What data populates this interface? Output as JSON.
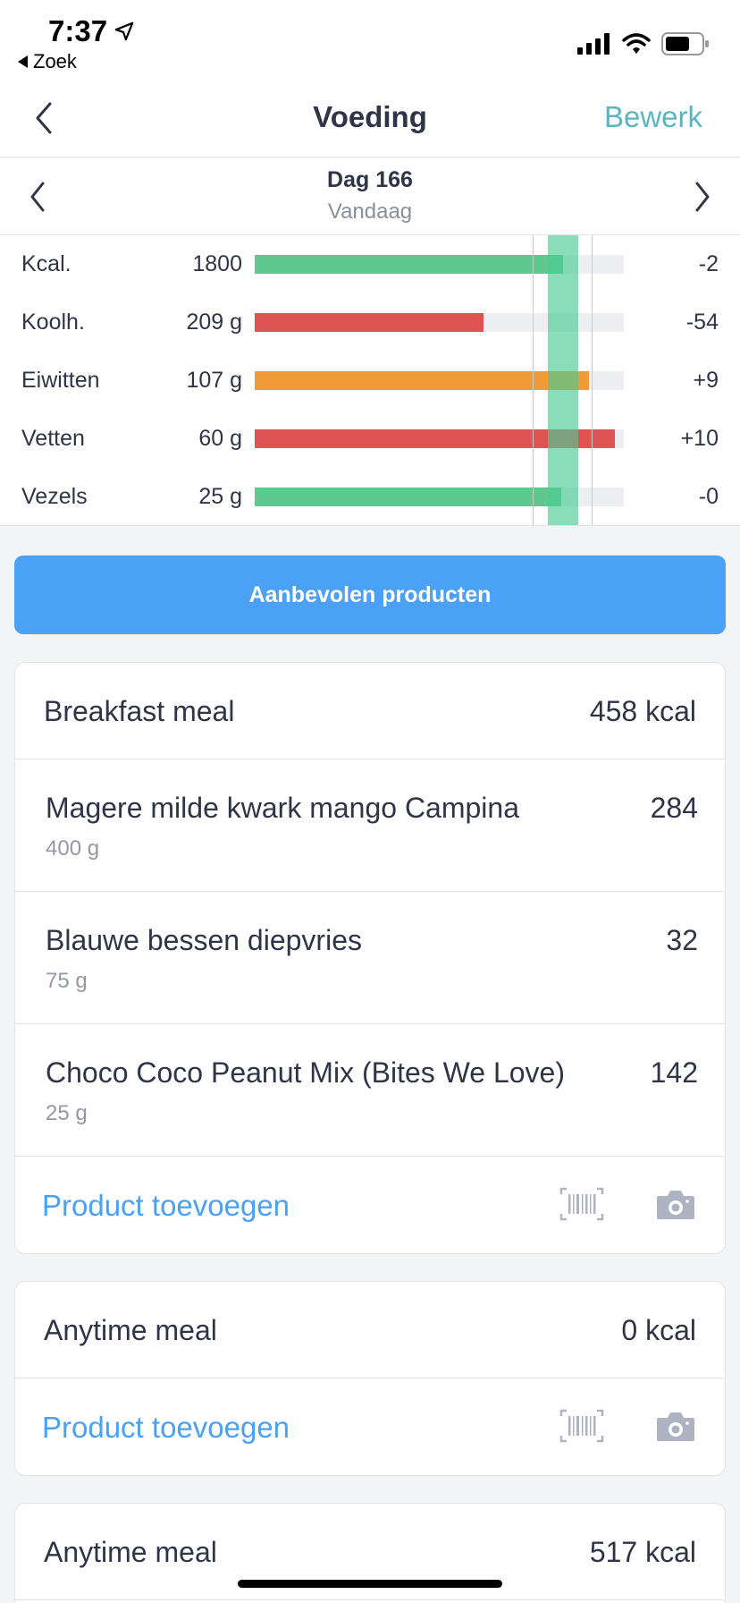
{
  "status_bar": {
    "time": "7:37",
    "back_app_label": "Zoek"
  },
  "nav": {
    "title": "Voeding",
    "edit_label": "Bewerk"
  },
  "day": {
    "title": "Dag 166",
    "subtitle": "Vandaag"
  },
  "macros": [
    {
      "name": "Kcal.",
      "amount": "1800",
      "diff": "-2",
      "fill_fraction": 0.835,
      "color": "#5ec88f"
    },
    {
      "name": "Koolh.",
      "amount": "209 g",
      "diff": "-54",
      "fill_fraction": 0.62,
      "color": "#e05353"
    },
    {
      "name": "Eiwitten",
      "amount": "107 g",
      "diff": "+9",
      "fill_fraction": 0.905,
      "color": "#f09a3a"
    },
    {
      "name": "Vetten",
      "amount": "60 g",
      "diff": "+10",
      "fill_fraction": 0.975,
      "color": "#e05353"
    },
    {
      "name": "Vezels",
      "amount": "25 g",
      "diff": "-0",
      "fill_fraction": 0.83,
      "color": "#5ec88f"
    }
  ],
  "recommend_label": "Aanbevolen producten",
  "meals": [
    {
      "title": "Breakfast meal",
      "kcal": "458 kcal",
      "items": [
        {
          "name": "Magere milde kwark mango Campina",
          "qty": "400 g",
          "kcal": "284"
        },
        {
          "name": "Blauwe bessen diepvries",
          "qty": "75 g",
          "kcal": "32"
        },
        {
          "name": "Choco Coco Peanut Mix (Bites We Love)",
          "qty": "25 g",
          "kcal": "142"
        }
      ],
      "add_label": "Product toevoegen"
    },
    {
      "title": "Anytime meal",
      "kcal": "0 kcal",
      "items": [],
      "add_label": "Product toevoegen"
    },
    {
      "title": "Anytime meal",
      "kcal": "517 kcal",
      "items": [],
      "add_label": ""
    }
  ],
  "colors": {
    "accent": "#4aa1f5",
    "edit": "#5bb5c0",
    "target_band": "#4acc94"
  }
}
